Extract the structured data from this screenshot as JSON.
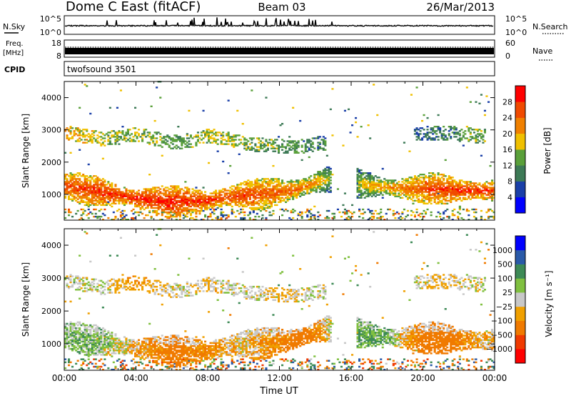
{
  "header": {
    "station": "Dome C East (fitACF)",
    "beam": "Beam 03",
    "date": "26/Mar/2013"
  },
  "noise_panel": {
    "left_label": "N.Sky",
    "right_label": "N.Search",
    "left_ticks": [
      "10^5",
      "10^0"
    ],
    "right_ticks": [
      "10^5",
      "10^0"
    ]
  },
  "freq_panel": {
    "left_label_1": "Freq.",
    "left_label_2": "[MHz]",
    "left_ticks": [
      "18",
      "8"
    ],
    "right_label": "Nave",
    "right_ticks": [
      "60",
      "0"
    ]
  },
  "cpid_panel": {
    "label": "CPID",
    "value": "twofsound 3501"
  },
  "colors": {
    "power_scale": [
      "#0000ff",
      "#1a3fa8",
      "#3d7a56",
      "#5aa03a",
      "#f0c000",
      "#f08000",
      "#f04a00",
      "#ff0000"
    ],
    "velocity_scale": [
      "#ff0000",
      "#f03a00",
      "#f07a00",
      "#f0a000",
      "#c8c8c8",
      "#80c040",
      "#3d8a56",
      "#2a5aa8",
      "#0000ff"
    ]
  },
  "chart_data": [
    {
      "type": "heatmap",
      "panel": "power",
      "ylabel": "Slant Range [km]",
      "ylim": [
        200,
        4500
      ],
      "y_ticks": [
        1000,
        2000,
        3000,
        4000
      ],
      "x_ticks": [
        "00:00",
        "04:00",
        "08:00",
        "12:00",
        "16:00",
        "20:00",
        "00:00"
      ],
      "xlim_hours": [
        0,
        24
      ],
      "colorbar_label": "Power [dB]",
      "colorbar_ticks": [
        "28",
        "24",
        "20",
        "16",
        "12",
        "8",
        "4"
      ],
      "colorbar_range": [
        0,
        32
      ],
      "grid": false,
      "x": [
        "00:00",
        "01:00",
        "02:00",
        "03:00",
        "04:00",
        "05:00",
        "06:00",
        "07:00",
        "08:00",
        "09:00",
        "10:00",
        "11:00",
        "12:00",
        "13:00",
        "14:00",
        "15:00",
        "16:00",
        "17:00",
        "18:00",
        "19:00",
        "20:00",
        "21:00",
        "22:00",
        "23:00",
        "24:00"
      ],
      "main_band_center_km": [
        1250,
        1150,
        1050,
        950,
        850,
        800,
        750,
        750,
        800,
        900,
        950,
        1000,
        1050,
        1150,
        1350,
        1500,
        1350,
        1250,
        1200,
        1150,
        1150,
        1150,
        1100,
        1100,
        1100
      ],
      "main_band_power_db": [
        27,
        27,
        28,
        28,
        29,
        29,
        29,
        28,
        28,
        27,
        27,
        26,
        25,
        24,
        22,
        14,
        16,
        20,
        22,
        24,
        26,
        27,
        28,
        28,
        27
      ],
      "upper_band_center_km": [
        2900,
        2800,
        2700,
        2750,
        2850,
        2700,
        2600,
        2650,
        2800,
        2700,
        2550,
        2500,
        2450,
        2450,
        2550,
        null,
        null,
        null,
        null,
        null,
        2850,
        2900,
        2850,
        2800,
        null
      ],
      "upper_band_power_db": [
        20,
        18,
        16,
        14,
        16,
        14,
        12,
        14,
        16,
        16,
        14,
        14,
        12,
        12,
        10,
        null,
        null,
        null,
        null,
        null,
        8,
        10,
        12,
        14,
        null
      ]
    },
    {
      "type": "heatmap",
      "panel": "velocity",
      "ylabel": "Slant Range [km]",
      "ylim": [
        200,
        4500
      ],
      "y_ticks": [
        1000,
        2000,
        3000,
        4000
      ],
      "x_ticks": [
        "00:00",
        "04:00",
        "08:00",
        "12:00",
        "16:00",
        "20:00",
        "00:00"
      ],
      "xlabel": "Time UT",
      "xlim_hours": [
        0,
        24
      ],
      "colorbar_label": "Velocity [m s⁻¹]",
      "colorbar_ticks": [
        "1000",
        "500",
        "100",
        "25",
        "−25",
        "−100",
        "−500",
        "−1000"
      ],
      "grid": false,
      "x": [
        "00:00",
        "01:00",
        "02:00",
        "03:00",
        "04:00",
        "05:00",
        "06:00",
        "07:00",
        "08:00",
        "09:00",
        "10:00",
        "11:00",
        "12:00",
        "13:00",
        "14:00",
        "15:00",
        "16:00",
        "17:00",
        "18:00",
        "19:00",
        "20:00",
        "21:00",
        "22:00",
        "23:00",
        "24:00"
      ],
      "main_band_velocity_ms": [
        80,
        60,
        50,
        0,
        -60,
        -120,
        -180,
        -150,
        -100,
        -60,
        -30,
        -80,
        -120,
        -200,
        -150,
        60,
        80,
        100,
        80,
        -80,
        -200,
        -250,
        -150,
        -60,
        -40
      ],
      "upper_band_velocity_ms": [
        0,
        0,
        20,
        -50,
        -80,
        -50,
        0,
        0,
        -30,
        0,
        0,
        0,
        -60,
        0,
        0,
        null,
        null,
        null,
        null,
        null,
        0,
        -40,
        0,
        0,
        null
      ]
    }
  ]
}
